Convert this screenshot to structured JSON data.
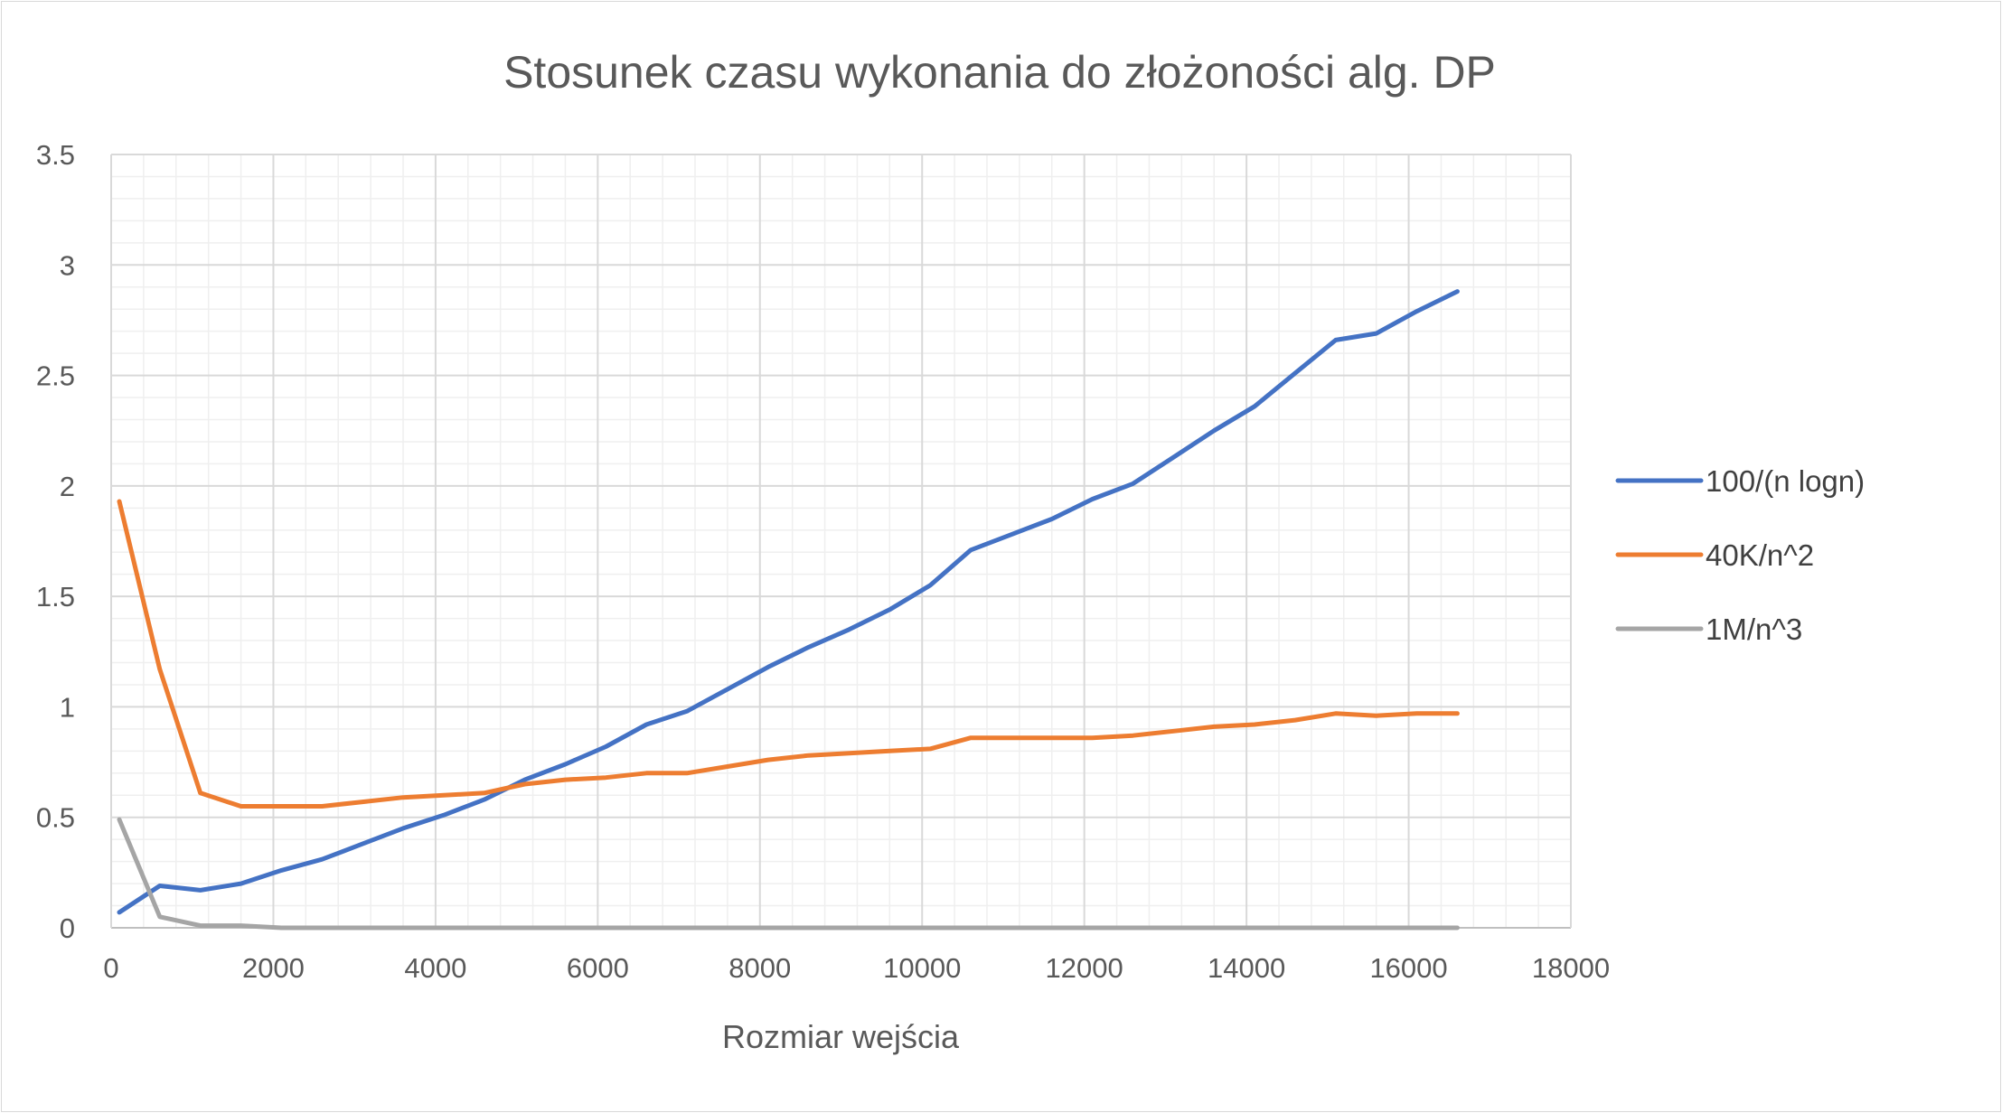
{
  "chart_data": {
    "type": "line",
    "title": "Stosunek czasu wykonania do złożoności alg. DP",
    "xlabel": "Rozmiar wejścia",
    "ylabel": "",
    "xlim": [
      0,
      18000
    ],
    "ylim": [
      0,
      3.5
    ],
    "xticks": [
      "0",
      "2000",
      "4000",
      "6000",
      "8000",
      "10000",
      "12000",
      "14000",
      "16000",
      "18000"
    ],
    "yticks": [
      "0",
      "0.5",
      "1",
      "1.5",
      "2",
      "2.5",
      "3",
      "3.5"
    ],
    "grid": true,
    "legend_position": "right",
    "x": [
      100,
      600,
      1100,
      1600,
      2100,
      2600,
      3100,
      3600,
      4100,
      4600,
      5100,
      5600,
      6100,
      6600,
      7100,
      7600,
      8100,
      8600,
      9100,
      9600,
      10100,
      10600,
      11100,
      11600,
      12100,
      12600,
      13100,
      13600,
      14100,
      14600,
      15100,
      15600,
      16100,
      16600
    ],
    "series": [
      {
        "name": "100/(n logn)",
        "color": "#4472C4",
        "values": [
          0.07,
          0.19,
          0.17,
          0.2,
          0.26,
          0.31,
          0.38,
          0.45,
          0.51,
          0.58,
          0.67,
          0.74,
          0.82,
          0.92,
          0.98,
          1.08,
          1.18,
          1.27,
          1.35,
          1.44,
          1.55,
          1.71,
          1.78,
          1.85,
          1.94,
          2.01,
          2.13,
          2.25,
          2.36,
          2.51,
          2.66,
          2.69,
          2.79,
          2.88
        ]
      },
      {
        "name": "40K/n^2",
        "color": "#ED7D31",
        "values": [
          1.93,
          1.17,
          0.61,
          0.55,
          0.55,
          0.55,
          0.57,
          0.59,
          0.6,
          0.61,
          0.65,
          0.67,
          0.68,
          0.7,
          0.7,
          0.73,
          0.76,
          0.78,
          0.79,
          0.8,
          0.81,
          0.86,
          0.86,
          0.86,
          0.86,
          0.87,
          0.89,
          0.91,
          0.92,
          0.94,
          0.97,
          0.96,
          0.97,
          0.97
        ]
      },
      {
        "name": "1M/n^3",
        "color": "#A5A5A5",
        "values": [
          0.49,
          0.05,
          0.01,
          0.01,
          0.0,
          0.0,
          0.0,
          0.0,
          0.0,
          0.0,
          0.0,
          0.0,
          0.0,
          0.0,
          0.0,
          0.0,
          0.0,
          0.0,
          0.0,
          0.0,
          0.0,
          0.0,
          0.0,
          0.0,
          0.0,
          0.0,
          0.0,
          0.0,
          0.0,
          0.0,
          0.0,
          0.0,
          0.0,
          0.0
        ]
      }
    ]
  }
}
